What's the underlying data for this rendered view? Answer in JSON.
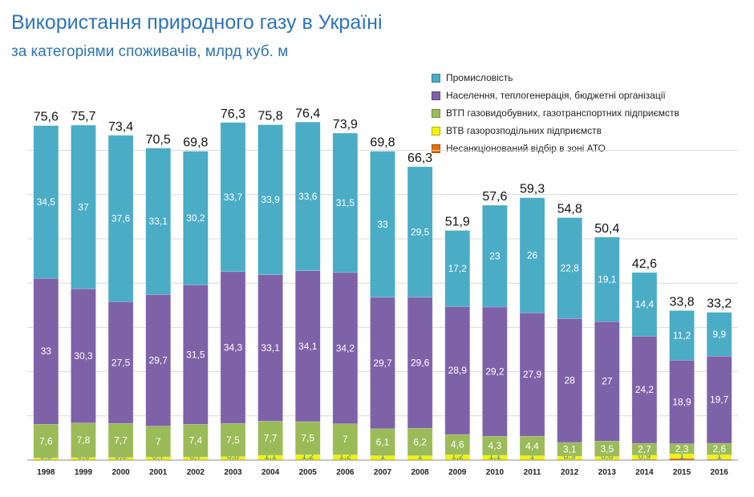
{
  "chart_data": {
    "type": "bar",
    "stacked": true,
    "title": "Використання природного газу в Україні",
    "subtitle": "за категоріями споживачів, млрд куб. м",
    "categories": [
      "1998",
      "1999",
      "2000",
      "2001",
      "2002",
      "2003",
      "2004",
      "2005",
      "2006",
      "2007",
      "2008",
      "2009",
      "2010",
      "2011",
      "2012",
      "2013",
      "2014",
      "2015",
      "2016"
    ],
    "totals": [
      "75,6",
      "75,7",
      "73,4",
      "70,5",
      "69,8",
      "76,3",
      "75,8",
      "76,4",
      "73,9",
      "69,8",
      "66,3",
      "51,9",
      "57,6",
      "59,3",
      "54,8",
      "50,4",
      "42,6",
      "33,8",
      "33,2"
    ],
    "ylim": [
      0,
      75
    ],
    "grid": true,
    "legend_position": "top-right",
    "series": [
      {
        "name": "Несанкціонований відбір в зоні АТО",
        "color": "#e36c0a",
        "values": [
          0,
          0,
          0,
          0,
          0,
          0,
          0,
          0,
          0,
          0,
          0,
          0,
          0,
          0,
          0,
          0,
          0.2,
          0.4,
          0.2
        ],
        "labels": [
          "",
          "",
          "",
          "",
          "",
          "",
          "",
          "",
          "",
          "",
          "",
          "",
          "",
          "",
          "",
          "",
          "",
          "",
          ""
        ]
      },
      {
        "name": "ВТВ газорозподільних підприємств",
        "color": "#f2f20d",
        "values": [
          0.5,
          0.6,
          0.6,
          0.7,
          0.7,
          0.8,
          1.1,
          1.2,
          1.2,
          1,
          1,
          1.2,
          1.1,
          1,
          0.9,
          0.8,
          0.9,
          1,
          1
        ],
        "labels": [
          "0,5",
          "0,6",
          "0,6",
          "0,7",
          "0,7",
          "0,8",
          "1,1",
          "1,2",
          "1,2",
          "1",
          "1",
          "1,2",
          "1,1",
          "1",
          "0,9",
          "0,8",
          "0,9",
          "1",
          "1"
        ]
      },
      {
        "name": "ВТП газовидобувних, газотранспортних підприємств",
        "color": "#9bbb59",
        "values": [
          7.6,
          7.8,
          7.7,
          7,
          7.4,
          7.5,
          7.7,
          7.5,
          7,
          6.1,
          6.2,
          4.6,
          4.3,
          4.4,
          3.1,
          3.5,
          2.7,
          2.3,
          2.6
        ],
        "labels": [
          "7,6",
          "7,8",
          "7,7",
          "7",
          "7,4",
          "7,5",
          "7,7",
          "7,5",
          "7",
          "6,1",
          "6,2",
          "4,6",
          "4,3",
          "4,4",
          "3,1",
          "3,5",
          "2,7",
          "2,3",
          "2,6"
        ]
      },
      {
        "name": "Населення, теплогенерація, бюджетні організації",
        "color": "#7e62a8",
        "values": [
          33,
          30.3,
          27.5,
          29.7,
          31.5,
          34.3,
          33.1,
          34.1,
          34.2,
          29.7,
          29.6,
          28.9,
          29.2,
          27.9,
          28,
          27,
          24.2,
          18.9,
          19.7
        ],
        "labels": [
          "33",
          "30,3",
          "27,5",
          "29,7",
          "31,5",
          "34,3",
          "33,1",
          "34,1",
          "34,2",
          "29,7",
          "29,6",
          "28,9",
          "29,2",
          "27,9",
          "28",
          "27",
          "24,2",
          "18,9",
          "19,7"
        ]
      },
      {
        "name": "Промисловість",
        "color": "#4bacc6",
        "values": [
          34.5,
          37,
          37.6,
          33.1,
          30.2,
          33.7,
          33.9,
          33.6,
          31.5,
          33,
          29.5,
          17.2,
          23,
          26,
          22.8,
          19.1,
          14.4,
          11.2,
          9.9
        ],
        "labels": [
          "34,5",
          "37",
          "37,6",
          "33,1",
          "30,2",
          "33,7",
          "33,9",
          "33,6",
          "31,5",
          "33",
          "29,5",
          "17,2",
          "23",
          "26",
          "22,8",
          "19,1",
          "14,4",
          "11,2",
          "9,9"
        ]
      }
    ],
    "legend_order": [
      4,
      3,
      2,
      1,
      0
    ]
  }
}
